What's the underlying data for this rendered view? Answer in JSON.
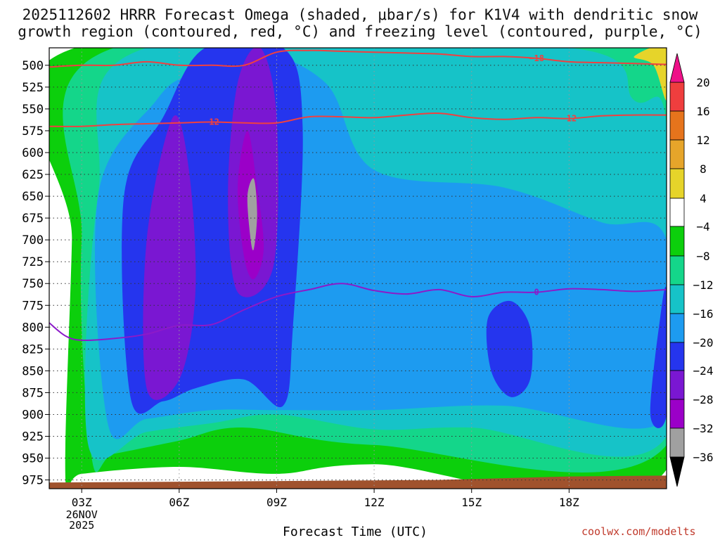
{
  "title_line1": "2025112602 HRRR Forecast Omega (shaded, μbar/s) for K1V4 with dendritic snow",
  "title_line2": "growth region (contoured, red, °C) and freezing level (contoured, purple, °C)",
  "xlabel": "Forecast Time (UTC)",
  "credit": "coolwx.com/modelts",
  "colors": {
    "c_le_-36": "#000000",
    "c_-36_-32": "#a0a0a0",
    "c_-32_-28": "#9b00c8",
    "c_-28_-24": "#7a17d2",
    "c_-24_-20": "#2535ee",
    "c_-20_-16": "#1d9bf0",
    "c_-16_-12": "#16c3c8",
    "c_-12_-8": "#14d68a",
    "c_-8_-4": "#0ccf0c",
    "c_-4_4": "#ffffff",
    "c_4_8": "#e6d42a",
    "c_8_12": "#e6a52a",
    "c_12_16": "#e6741c",
    "c_16_20": "#ef3e3e",
    "c_ge_20": "#ee1188",
    "dgz_contour": "#f04040",
    "freezing_contour": "#8c1ac9",
    "ground": "#a0522d"
  },
  "chart_data": {
    "type": "heatmap",
    "title": "2025112602 HRRR Forecast Omega (shaded, μbar/s) for K1V4 with dendritic snow growth region (contoured, red, °C) and freezing level (contoured, purple, °C)",
    "xlabel": "Forecast Time (UTC)",
    "ylabel": "",
    "x_ticks": [
      "03Z",
      "06Z",
      "09Z",
      "12Z",
      "15Z",
      "18Z"
    ],
    "x_date_label": [
      "26NOV",
      "2025"
    ],
    "x_range_hours": [
      2,
      21
    ],
    "y_ticks": [
      500,
      525,
      550,
      575,
      600,
      625,
      650,
      675,
      700,
      725,
      750,
      775,
      800,
      825,
      850,
      875,
      900,
      925,
      950,
      975
    ],
    "y_range_hPa": [
      480,
      985
    ],
    "grid": true,
    "colorbar": {
      "labels": [
        "20",
        "16",
        "12",
        "8",
        "4",
        "−4",
        "−8",
        "−12",
        "−16",
        "−20",
        "−24",
        "−28",
        "−32",
        "−36"
      ],
      "levels": [
        20,
        16,
        12,
        8,
        4,
        -4,
        -8,
        -12,
        -16,
        -20,
        -24,
        -28,
        -32,
        -36
      ],
      "units": "μbar/s"
    },
    "contours": [
      {
        "name": "-18",
        "label": "−18",
        "color": "red",
        "points": [
          [
            2,
            502
          ],
          [
            3,
            500
          ],
          [
            4,
            500
          ],
          [
            5,
            496
          ],
          [
            6,
            500
          ],
          [
            7,
            500
          ],
          [
            8,
            500
          ],
          [
            9,
            485
          ],
          [
            10,
            483
          ],
          [
            11,
            484
          ],
          [
            12,
            485
          ],
          [
            13,
            486
          ],
          [
            14,
            487
          ],
          [
            15,
            490
          ],
          [
            16,
            490
          ],
          [
            17,
            492
          ],
          [
            18,
            496
          ],
          [
            19,
            497
          ],
          [
            20,
            498
          ],
          [
            21,
            499
          ]
        ]
      },
      {
        "name": "-12",
        "label": "−12",
        "color": "red",
        "points": [
          [
            2,
            570
          ],
          [
            3,
            570
          ],
          [
            4,
            568
          ],
          [
            5,
            567
          ],
          [
            6,
            566
          ],
          [
            7,
            565
          ],
          [
            8,
            566
          ],
          [
            9,
            566
          ],
          [
            10,
            559
          ],
          [
            11,
            559
          ],
          [
            12,
            560
          ],
          [
            13,
            557
          ],
          [
            14,
            555
          ],
          [
            15,
            560
          ],
          [
            16,
            562
          ],
          [
            17,
            560
          ],
          [
            18,
            561
          ],
          [
            19,
            558
          ],
          [
            20,
            557
          ],
          [
            21,
            557
          ]
        ]
      },
      {
        "name": "0",
        "label": "0",
        "color": "purple",
        "points": [
          [
            2,
            795
          ],
          [
            2.5,
            810
          ],
          [
            3,
            815
          ],
          [
            4,
            813
          ],
          [
            5,
            808
          ],
          [
            6,
            798
          ],
          [
            7,
            797
          ],
          [
            8,
            780
          ],
          [
            9,
            765
          ],
          [
            10,
            757
          ],
          [
            11,
            750
          ],
          [
            12,
            758
          ],
          [
            13,
            762
          ],
          [
            14,
            757
          ],
          [
            15,
            765
          ],
          [
            16,
            760
          ],
          [
            17,
            760
          ],
          [
            18,
            756
          ],
          [
            19,
            757
          ],
          [
            20,
            759
          ],
          [
            21,
            757
          ]
        ]
      }
    ],
    "omega_regions": [
      {
        "range": [
          -8,
          -4
        ],
        "points": [
          [
            2.5,
            975
          ],
          [
            2.7,
            700
          ],
          [
            2.8,
            480
          ],
          [
            21,
            480
          ],
          [
            21,
            963
          ],
          [
            12,
            957
          ],
          [
            9,
            968
          ],
          [
            6,
            960
          ],
          [
            3,
            968
          ]
        ]
      },
      {
        "range": [
          -12,
          -8
        ],
        "points": [
          [
            3.3,
            948
          ],
          [
            3.0,
            700
          ],
          [
            4.0,
            480
          ],
          [
            20.5,
            480
          ],
          [
            21,
            520
          ],
          [
            21,
            935
          ],
          [
            12,
            935
          ],
          [
            8,
            915
          ],
          [
            6,
            930
          ],
          [
            4,
            945
          ]
        ]
      },
      {
        "range": [
          -16,
          -12
        ],
        "points": [
          [
            3.2,
            935
          ],
          [
            3.5,
            650
          ],
          [
            5,
            480
          ],
          [
            18,
            480
          ],
          [
            20,
            540
          ],
          [
            21,
            570
          ],
          [
            21,
            925
          ],
          [
            15,
            915
          ],
          [
            12,
            917
          ],
          [
            9,
            900
          ],
          [
            7,
            910
          ],
          [
            5,
            920
          ]
        ]
      },
      {
        "range": [
          -20,
          -16
        ],
        "points": [
          [
            3.8,
            910
          ],
          [
            3.5,
            650
          ],
          [
            5.3,
            540
          ],
          [
            6.3,
            510
          ],
          [
            8.0,
            480
          ],
          [
            10.5,
            520
          ],
          [
            12,
            620
          ],
          [
            16,
            640
          ],
          [
            19,
            680
          ],
          [
            21,
            700
          ],
          [
            21,
            905
          ],
          [
            16,
            890
          ],
          [
            12,
            895
          ],
          [
            9,
            895
          ],
          [
            7,
            895
          ],
          [
            5,
            905
          ]
        ]
      },
      {
        "range": [
          -24,
          -20
        ],
        "points": [
          [
            4.5,
            880
          ],
          [
            4.3,
            650
          ],
          [
            5.5,
            560
          ],
          [
            6.8,
            480
          ],
          [
            9.2,
            480
          ],
          [
            9.8,
            570
          ],
          [
            9.5,
            800
          ],
          [
            9.2,
            890
          ],
          [
            8,
            860
          ],
          [
            6.5,
            870
          ],
          [
            5.5,
            885
          ]
        ]
      },
      {
        "range": [
          -24,
          -20
        ],
        "points": [
          [
            15.6,
            850
          ],
          [
            15.5,
            790
          ],
          [
            16.2,
            770
          ],
          [
            16.8,
            800
          ],
          [
            16.8,
            860
          ],
          [
            16.2,
            880
          ]
        ]
      },
      {
        "range": [
          -24,
          -20
        ],
        "points": [
          [
            20.5,
            900
          ],
          [
            20.8,
            790
          ],
          [
            21,
            760
          ],
          [
            21,
            900
          ]
        ]
      },
      {
        "range": [
          -28,
          -24
        ],
        "points": [
          [
            5,
            870
          ],
          [
            5,
            700
          ],
          [
            5.8,
            560
          ],
          [
            6.3,
            620
          ],
          [
            6.5,
            760
          ],
          [
            6,
            860
          ]
        ]
      },
      {
        "range": [
          -28,
          -24
        ],
        "points": [
          [
            7.8,
            760
          ],
          [
            7.5,
            650
          ],
          [
            7.8,
            520
          ],
          [
            8.5,
            480
          ],
          [
            9.0,
            560
          ],
          [
            8.9,
            730
          ]
        ]
      },
      {
        "range": [
          -32,
          -28
        ],
        "points": [
          [
            8.0,
            720
          ],
          [
            7.8,
            640
          ],
          [
            8.1,
            575
          ],
          [
            8.4,
            640
          ],
          [
            8.6,
            710
          ],
          [
            8.3,
            745
          ]
        ]
      },
      {
        "range": [
          -36,
          -32
        ],
        "points": [
          [
            8.2,
            700
          ],
          [
            8.1,
            650
          ],
          [
            8.3,
            630
          ],
          [
            8.4,
            670
          ],
          [
            8.3,
            710
          ]
        ]
      },
      {
        "range": [
          4,
          8
        ],
        "points": [
          [
            20,
            490
          ],
          [
            21,
            480
          ],
          [
            21,
            540
          ],
          [
            20.6,
            500
          ]
        ]
      }
    ]
  }
}
